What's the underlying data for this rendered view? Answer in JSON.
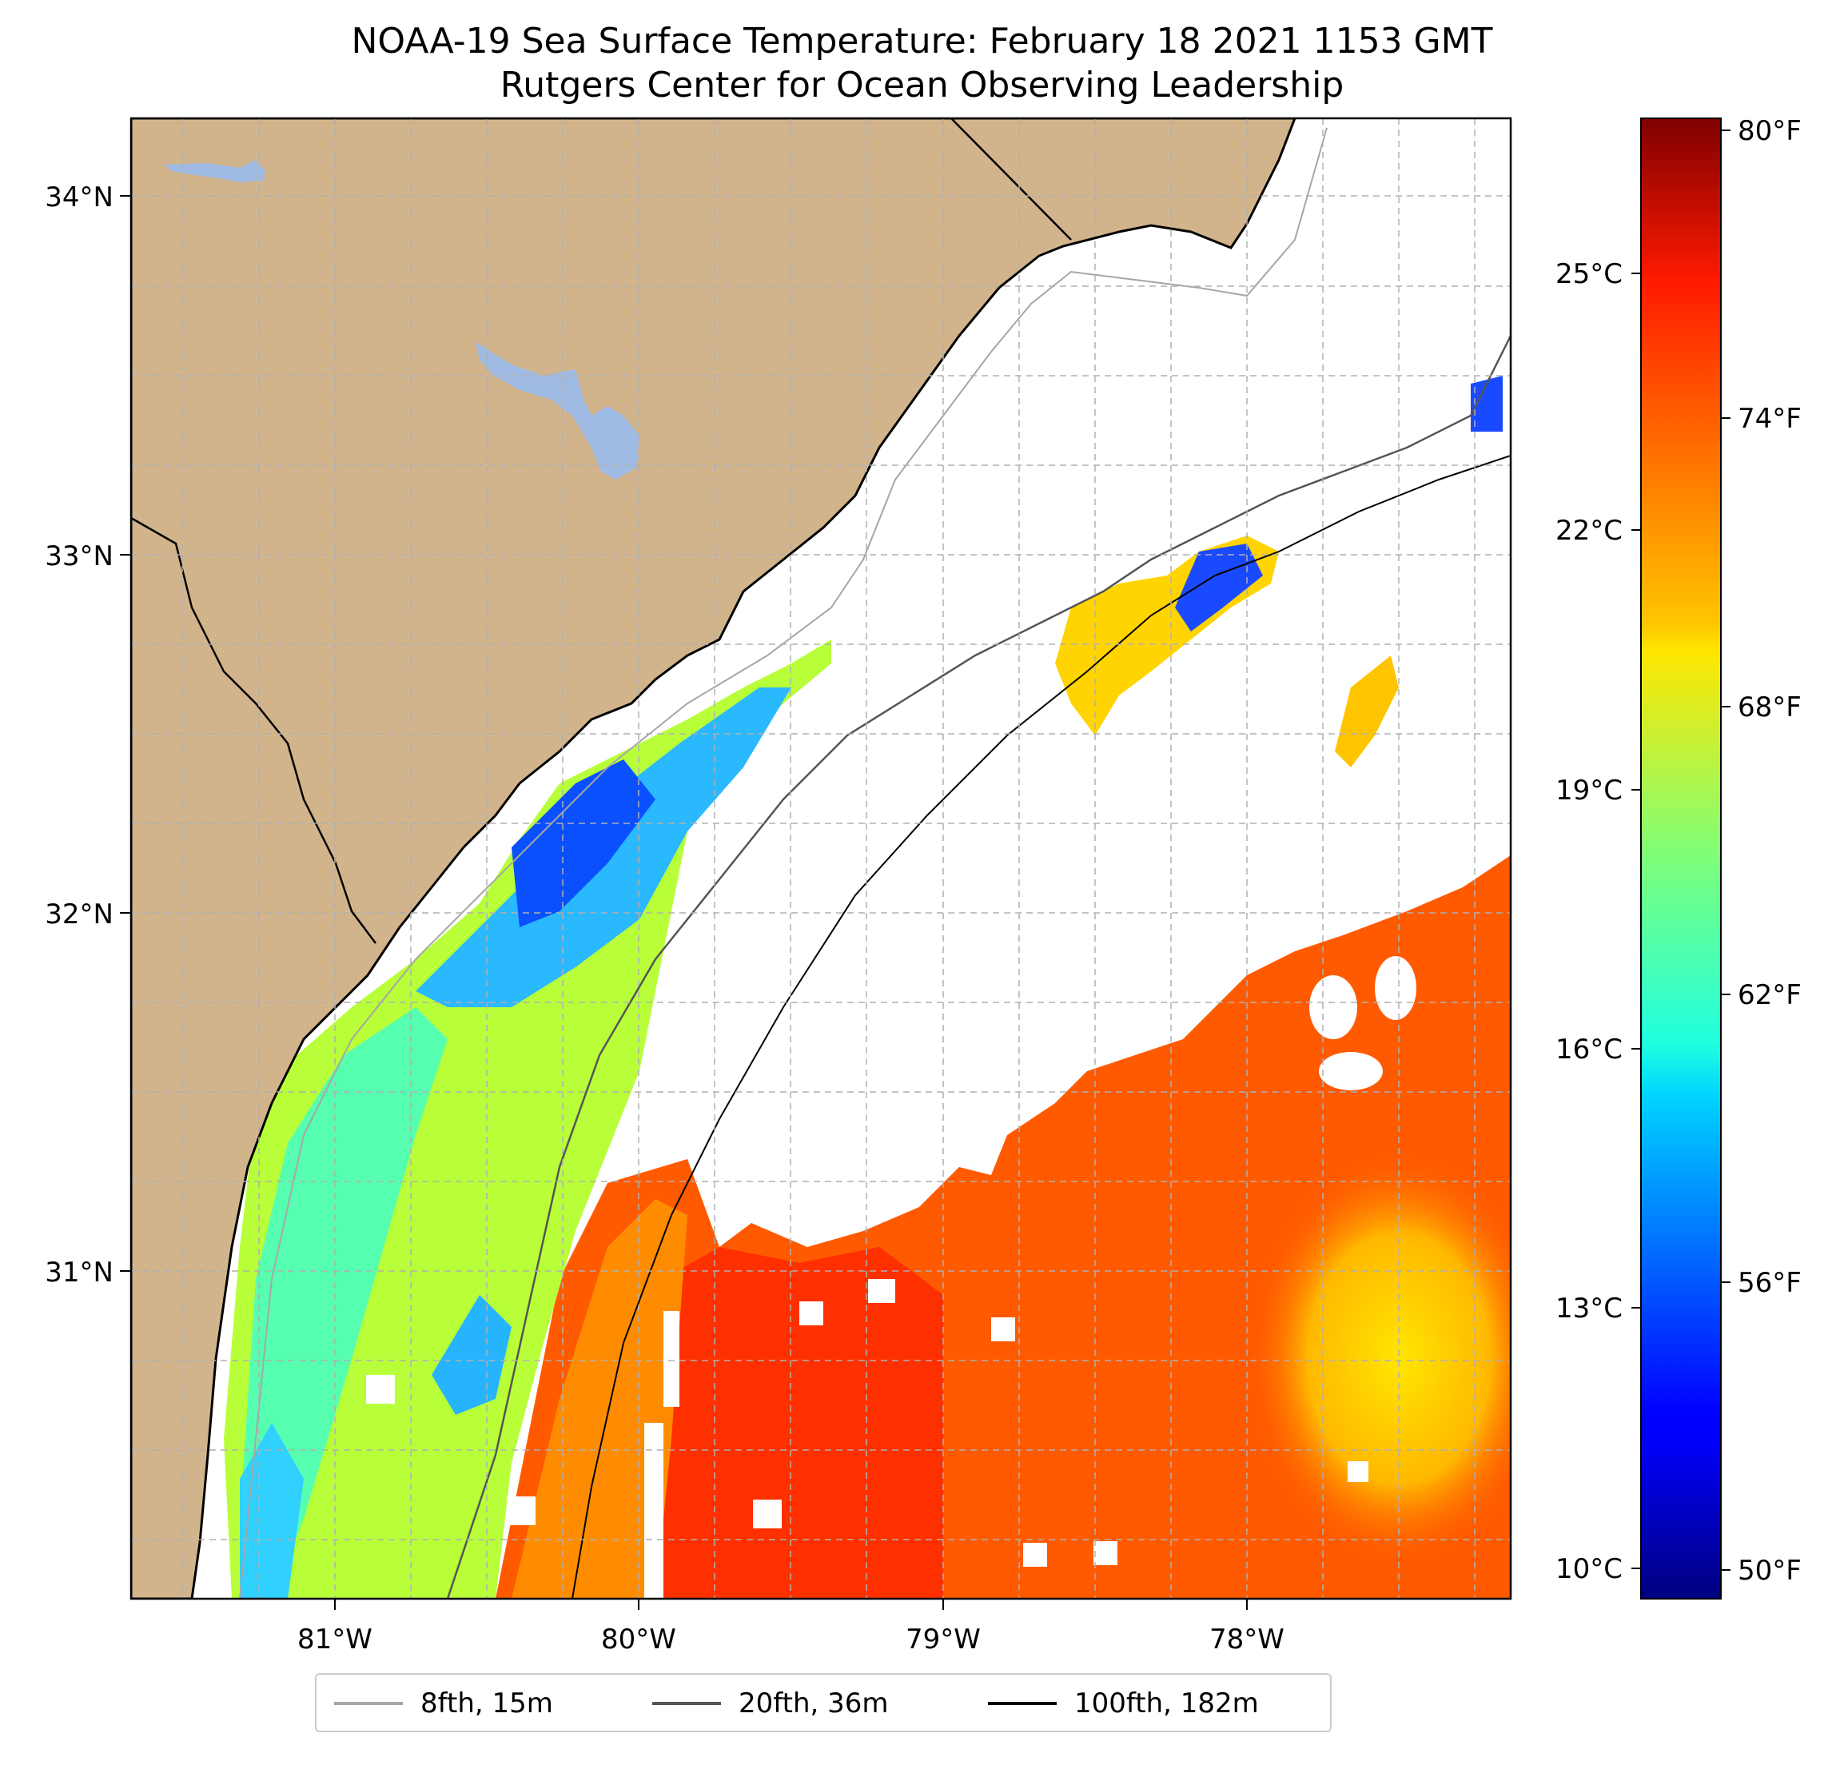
{
  "title": "NOAA-19 Sea Surface Temperature: February 18 2021 1153 GMT",
  "subtitle": "Rutgers Center for Ocean Observing Leadership",
  "map": {
    "lon_range": [
      -81.68,
      -77.1
    ],
    "lat_range": [
      30.07,
      34.22
    ],
    "lat_labels": [
      "34°N",
      "33°N",
      "32°N",
      "31°N"
    ],
    "lon_labels": [
      "81°W",
      "80°W",
      "79°W",
      "78°W"
    ],
    "colors": {
      "land": "#d2b48c",
      "lakes": "#9fbbe4",
      "no_data": "#ffffff",
      "grid": "#b0b0b0",
      "contour_8fth": "#a6a6a6",
      "contour_20fth": "#555555",
      "contour_100fth": "#000000"
    }
  },
  "colorbar": {
    "colormap": "jet",
    "range_celsius": [
      9.5,
      27.1
    ],
    "celsius_labels": [
      "25°C",
      "22°C",
      "19°C",
      "16°C",
      "13°C",
      "10°C"
    ],
    "fahrenheit_labels": [
      "80°F",
      "74°F",
      "68°F",
      "62°F",
      "56°F",
      "50°F"
    ]
  },
  "legend": {
    "items": [
      {
        "label": "8fth, 15m",
        "color": "#a6a6a6"
      },
      {
        "label": "20fth, 36m",
        "color": "#555555"
      },
      {
        "label": "100fth, 182m",
        "color": "#000000"
      }
    ]
  }
}
